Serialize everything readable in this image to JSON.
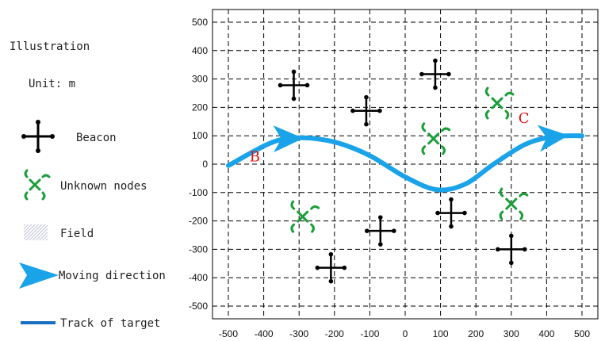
{
  "legend": {
    "title": "Illustration",
    "unit": "Unit: m",
    "items": [
      {
        "id": "beacon",
        "label": "Beacon",
        "icon": "beacon-icon"
      },
      {
        "id": "unknown",
        "label": "Unknown nodes",
        "icon": "unknown-node-icon"
      },
      {
        "id": "field",
        "label": "Field",
        "icon": "field-icon"
      },
      {
        "id": "direction",
        "label": "Moving direction",
        "icon": "arrow-icon"
      },
      {
        "id": "track",
        "label": "Track of target",
        "icon": "track-line-icon"
      }
    ]
  },
  "colors": {
    "beacon": "#000000",
    "unknown": "#1a9e3a",
    "track": "#1aa3e8",
    "label": "#e01010",
    "grid": "#000000"
  },
  "chart_data": {
    "type": "scatter",
    "xlim": [
      -500,
      500
    ],
    "ylim": [
      -500,
      500
    ],
    "xticks": [
      -500,
      -400,
      -300,
      -200,
      -100,
      0,
      100,
      200,
      300,
      400,
      500
    ],
    "yticks": [
      500,
      400,
      300,
      200,
      100,
      0,
      -100,
      -200,
      -300,
      -400,
      -500
    ],
    "grid": true,
    "beacons": [
      {
        "x": -315,
        "y": 278
      },
      {
        "x": -110,
        "y": 188
      },
      {
        "x": 85,
        "y": 317
      },
      {
        "x": -210,
        "y": -365
      },
      {
        "x": -70,
        "y": -235
      },
      {
        "x": 130,
        "y": -172
      },
      {
        "x": 300,
        "y": -300
      }
    ],
    "unknown_nodes": [
      {
        "x": 80,
        "y": 90
      },
      {
        "x": 260,
        "y": 215
      },
      {
        "x": -290,
        "y": -185
      },
      {
        "x": 300,
        "y": -140
      }
    ],
    "track": [
      {
        "x": -500,
        "y": -5
      },
      {
        "x": -380,
        "y": 75
      },
      {
        "x": -300,
        "y": 93
      },
      {
        "x": -200,
        "y": 78
      },
      {
        "x": -100,
        "y": 30
      },
      {
        "x": 0,
        "y": -45
      },
      {
        "x": 90,
        "y": -90
      },
      {
        "x": 170,
        "y": -70
      },
      {
        "x": 250,
        "y": 0
      },
      {
        "x": 340,
        "y": 70
      },
      {
        "x": 420,
        "y": 97
      },
      {
        "x": 500,
        "y": 100
      }
    ],
    "arrows": [
      {
        "x": -330,
        "y": 90,
        "dx": 1,
        "dy": 0.02
      },
      {
        "x": 420,
        "y": 96,
        "dx": 1,
        "dy": 0.1
      }
    ],
    "labels": [
      {
        "text": "B",
        "x": -440,
        "y": 10
      },
      {
        "text": "C",
        "x": 320,
        "y": 145
      }
    ]
  }
}
